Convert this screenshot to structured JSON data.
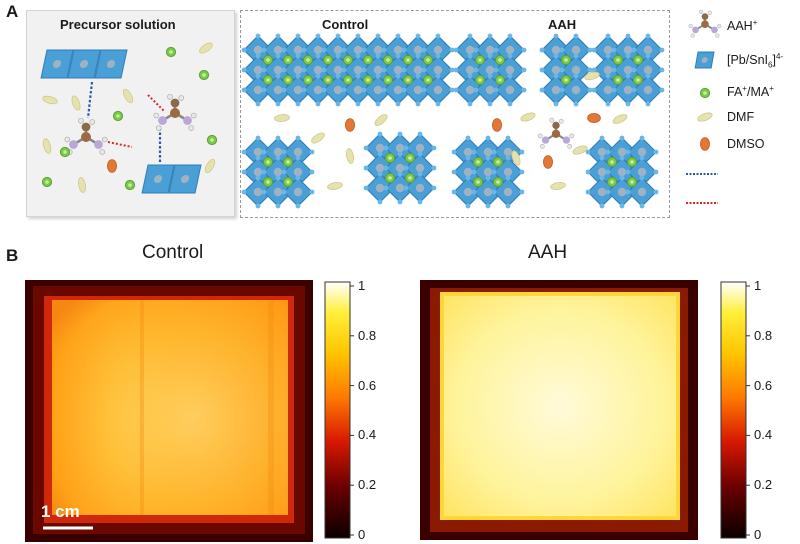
{
  "panel_a": {
    "letter": "A",
    "precursor_title": "Precursor solution",
    "control_title": "Control",
    "aah_title": "AAH",
    "legend": [
      {
        "label": "AAH",
        "sup": "+",
        "icon": "aah-molecule-icon"
      },
      {
        "label": "[Pb/SnI",
        "sub": "6",
        "label_end": "]",
        "sup": "4-",
        "icon": "octahedron-icon"
      },
      {
        "label": "FA",
        "sup": "+",
        "label_mid": "/MA",
        "sup2": "+",
        "icon": "green-cation-icon"
      },
      {
        "label": "DMF",
        "icon": "dmf-ellipse-icon"
      },
      {
        "label": "DMSO",
        "icon": "dmso-ellipse-icon"
      },
      {
        "label": "",
        "icon": "blue-dotted-line-icon"
      },
      {
        "label": "",
        "icon": "red-dotted-line-icon"
      }
    ],
    "colors": {
      "octahedron": "#4a9fd6",
      "octahedron_dark": "#2a6f9f",
      "cation": "#7cc84a",
      "dmf": "#e6e2b0",
      "dmso": "#e2773a",
      "blue_bond": "#2a5aa8",
      "red_bond": "#d02a2a"
    }
  },
  "panel_b": {
    "letter": "B",
    "left_title": "Control",
    "right_title": "AAH",
    "scale_bar_label": "1 cm",
    "colorbar_ticks": [
      "1",
      "0.8",
      "0.6",
      "0.4",
      "0.2",
      "0"
    ],
    "colormap": "hot"
  }
}
